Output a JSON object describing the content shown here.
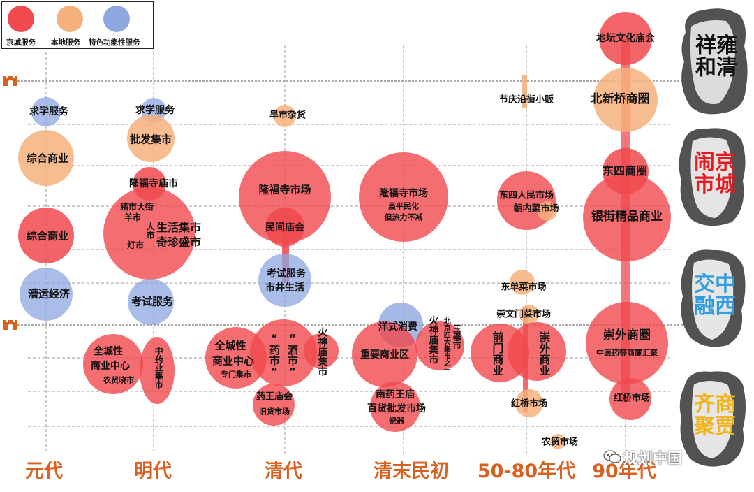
{
  "legend": {
    "items": [
      {
        "label": "京城服务",
        "color": "#f0494e"
      },
      {
        "label": "本地服务",
        "color": "#f6b07c"
      },
      {
        "label": "特色功能性服务",
        "color": "#8ea7e0"
      }
    ]
  },
  "colors": {
    "capital": "#f0494e",
    "local": "#f6b07c",
    "special": "#8ea7e0",
    "era": "#d9601e"
  },
  "eras": [
    "元代",
    "明代",
    "清代",
    "清末民初",
    "50-80年代",
    "90年代"
  ],
  "themes": [
    {
      "text": "雍清祥和",
      "color": "#111111"
    },
    {
      "text": "京城闹市",
      "color": "#e8191e"
    },
    {
      "text": "中西交融",
      "color": "#2f9de0"
    },
    {
      "text": "商贾齐聚",
      "color": "#f2b415"
    }
  ],
  "nodes": {
    "yuan_qiuxue": "求学服务",
    "yuan_zonghe1": "综合商业",
    "yuan_zonghe2": "综合商业",
    "yuan_caoyun": "漕运经济",
    "ming_qiuxue": "求学服务",
    "ming_pifa": "批发集市",
    "ming_longfu": "隆福寺庙市",
    "ming_zhushi": "猪市大街",
    "ming_yangshi": "羊市",
    "ming_renshi": "人市",
    "ming_shenghuo": "生活集市",
    "ming_qizhen": "奇珍盛市",
    "ming_dengshi": "灯市",
    "ming_kaoshi": "考试服务",
    "ming_quancheng": "全城性",
    "ming_shangye": "商业中心",
    "ming_nongmao": "农贸晓市",
    "ming_zhongyao": "中药业集市",
    "qing_zaoshi": "旱市杂货",
    "qing_longfu": "隆福寺市场",
    "qing_minjian": "民间庙会",
    "qing_kaoshi": "考试服务",
    "qing_shijing": "市井生活",
    "qing_quancheng": "全城性",
    "qing_shangye": "商业中心",
    "qing_zhuanmen": "专门集市",
    "qing_yaoshi": "“药市”",
    "qing_jiushi": "“酒市”",
    "qing_huoshen": "火神庙集市",
    "qing_yaowang": "药王庙会",
    "qing_jiuhuo": "旧货市场",
    "mc_longfu": "隆福寺市场",
    "mc_pingmin": "虽平民化",
    "mc_danre": "但热力不减",
    "mc_yangshi": "洋式消费",
    "mc_zhongyao": "重要商业区",
    "mc_huoshen": "火神庙集市",
    "mc_beijing": "北京四大集市之一",
    "mc_yuqi": "玉器市",
    "mc_yaowang": "南药王庙",
    "mc_baihuo": "百货批发市场",
    "mc_ciqi": "瓷器",
    "y58_jieqing": "节庆沿街小贩",
    "y58_dongsi": "东四人民市场",
    "y58_chaonei": "朝内菜市场",
    "y58_dongdan": "东单菜市场",
    "y58_chongwen": "崇文门菜市场",
    "y58_qianmen": "前门商业",
    "y58_chongwai": "崇外商业",
    "y58_hongqiao": "红桥市场",
    "y58_nongmao": "农贸市场",
    "y90_ditan": "地坛文化庙会",
    "y90_beixinqiao": "北新桥商圈",
    "y90_dongsi": "东四商圈",
    "y90_yinjie": "银街精品商业",
    "y90_chongwai": "崇外商圈",
    "y90_zhongyiyao": "中医药等商厦汇聚",
    "y90_hongqiao": "红桥市场"
  },
  "watermark": "规划中国"
}
